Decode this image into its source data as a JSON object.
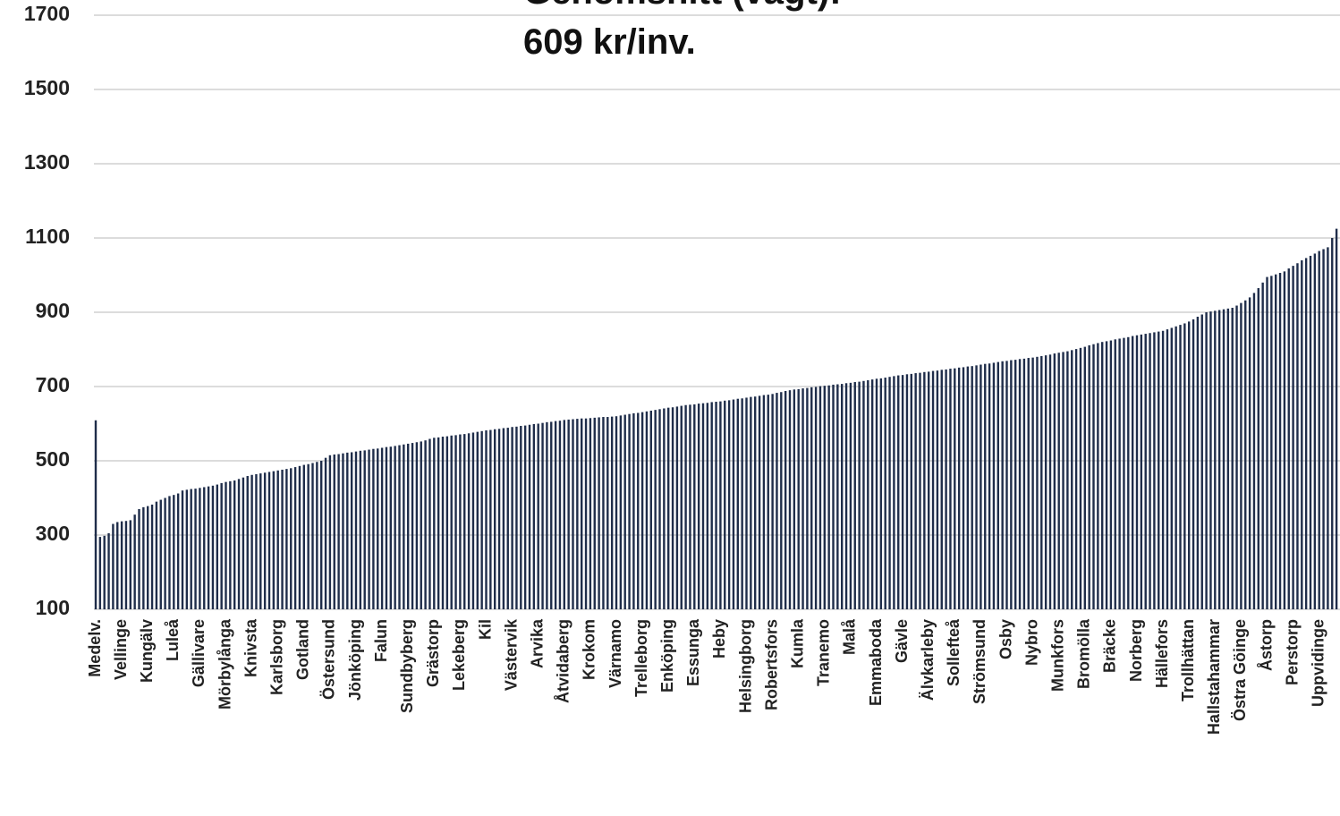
{
  "chart_data": {
    "type": "bar",
    "annotations": [
      "Genomsnitt (vägt):",
      "609 kr/inv."
    ],
    "categories": [
      "Medelv.",
      null,
      null,
      null,
      null,
      null,
      "Vellinge",
      null,
      null,
      null,
      null,
      null,
      "Kungälv",
      null,
      null,
      null,
      null,
      null,
      "Luleå",
      null,
      null,
      null,
      null,
      null,
      "Gällivare",
      null,
      null,
      null,
      null,
      null,
      "Mörbylånga",
      null,
      null,
      null,
      null,
      null,
      "Knivsta",
      null,
      null,
      null,
      null,
      null,
      "Karlsborg",
      null,
      null,
      null,
      null,
      null,
      "Gotland",
      null,
      null,
      null,
      null,
      null,
      "Östersund",
      null,
      null,
      null,
      null,
      null,
      "Jönköping",
      null,
      null,
      null,
      null,
      null,
      "Falun",
      null,
      null,
      null,
      null,
      null,
      "Sundbyberg",
      null,
      null,
      null,
      null,
      null,
      "Grästorp",
      null,
      null,
      null,
      null,
      null,
      "Lekeberg",
      null,
      null,
      null,
      null,
      null,
      "Kil",
      null,
      null,
      null,
      null,
      null,
      "Västervik",
      null,
      null,
      null,
      null,
      null,
      "Arvika",
      null,
      null,
      null,
      null,
      null,
      "Åtvidaberg",
      null,
      null,
      null,
      null,
      null,
      "Krokom",
      null,
      null,
      null,
      null,
      null,
      "Värnamo",
      null,
      null,
      null,
      null,
      null,
      "Trelleborg",
      null,
      null,
      null,
      null,
      null,
      "Enköping",
      null,
      null,
      null,
      null,
      null,
      "Essunga",
      null,
      null,
      null,
      null,
      null,
      "Heby",
      null,
      null,
      null,
      null,
      null,
      "Helsingborg",
      null,
      null,
      null,
      null,
      null,
      "Robertsfors",
      null,
      null,
      null,
      null,
      null,
      "Kumla",
      null,
      null,
      null,
      null,
      null,
      "Tranemo",
      null,
      null,
      null,
      null,
      null,
      "Malå",
      null,
      null,
      null,
      null,
      null,
      "Emmaboda",
      null,
      null,
      null,
      null,
      null,
      "Gävle",
      null,
      null,
      null,
      null,
      null,
      "Älvkarleby",
      null,
      null,
      null,
      null,
      null,
      "Sollefteå",
      null,
      null,
      null,
      null,
      null,
      "Strömsund",
      null,
      null,
      null,
      null,
      null,
      "Osby",
      null,
      null,
      null,
      null,
      null,
      "Nybro",
      null,
      null,
      null,
      null,
      null,
      "Munkfors",
      null,
      null,
      null,
      null,
      null,
      "Bromölla",
      null,
      null,
      null,
      null,
      null,
      "Bräcke",
      null,
      null,
      null,
      null,
      null,
      "Norberg",
      null,
      null,
      null,
      null,
      null,
      "Hällefors",
      null,
      null,
      null,
      null,
      null,
      "Trollhättan",
      null,
      null,
      null,
      null,
      null,
      "Hallstahammar",
      null,
      null,
      null,
      null,
      null,
      "Östra Göinge",
      null,
      null,
      null,
      null,
      null,
      "Åstorp",
      null,
      null,
      null,
      null,
      null,
      "Perstorp",
      null,
      null,
      null,
      null,
      null,
      "Uppvidinge",
      null,
      null,
      null,
      null
    ],
    "values": [
      609,
      295,
      298,
      305,
      330,
      335,
      337,
      338,
      340,
      355,
      370,
      375,
      378,
      382,
      390,
      395,
      400,
      405,
      408,
      412,
      420,
      422,
      424,
      425,
      427,
      429,
      431,
      433,
      436,
      440,
      443,
      445,
      447,
      451,
      455,
      459,
      462,
      464,
      466,
      468,
      470,
      472,
      474,
      476,
      478,
      480,
      483,
      486,
      489,
      491,
      494,
      497,
      500,
      508,
      515,
      517,
      518,
      520,
      522,
      523,
      525,
      527,
      528,
      530,
      532,
      533,
      535,
      537,
      538,
      540,
      542,
      544,
      546,
      548,
      550,
      552,
      555,
      559,
      562,
      563,
      565,
      566,
      568,
      569,
      571,
      572,
      574,
      576,
      578,
      580,
      582,
      583,
      585,
      586,
      588,
      589,
      591,
      592,
      594,
      595,
      597,
      599,
      600,
      602,
      604,
      605,
      607,
      608,
      610,
      611,
      612,
      613,
      614,
      614,
      615,
      616,
      617,
      618,
      618,
      619,
      620,
      622,
      624,
      626,
      628,
      629,
      631,
      633,
      635,
      637,
      639,
      641,
      643,
      644,
      646,
      648,
      650,
      651,
      652,
      654,
      655,
      656,
      658,
      659,
      660,
      662,
      663,
      665,
      667,
      668,
      670,
      672,
      673,
      675,
      677,
      678,
      680,
      683,
      685,
      688,
      690,
      692,
      693,
      695,
      696,
      698,
      699,
      701,
      702,
      703,
      705,
      706,
      707,
      709,
      710,
      712,
      713,
      715,
      717,
      719,
      721,
      722,
      724,
      726,
      728,
      730,
      731,
      733,
      734,
      736,
      737,
      739,
      740,
      742,
      743,
      745,
      746,
      748,
      749,
      751,
      752,
      754,
      755,
      757,
      759,
      761,
      762,
      764,
      766,
      768,
      769,
      771,
      772,
      774,
      775,
      777,
      778,
      780,
      782,
      784,
      786,
      789,
      791,
      793,
      795,
      798,
      801,
      804,
      807,
      811,
      814,
      817,
      820,
      822,
      824,
      827,
      829,
      831,
      833,
      836,
      838,
      840,
      842,
      844,
      846,
      848,
      850,
      854,
      858,
      862,
      866,
      870,
      875,
      881,
      888,
      894,
      900,
      902,
      904,
      906,
      908,
      910,
      912,
      918,
      925,
      932,
      940,
      952,
      965,
      980,
      995,
      998,
      1002,
      1006,
      1010,
      1018,
      1025,
      1032,
      1040,
      1046,
      1052,
      1058,
      1065,
      1070,
      1075,
      1100,
      1125
    ],
    "color": "#1f2d4a",
    "ylim": [
      100,
      1700
    ],
    "yticks": [
      100,
      300,
      500,
      700,
      900,
      1100,
      1300,
      1500,
      1700
    ],
    "grid": true
  }
}
